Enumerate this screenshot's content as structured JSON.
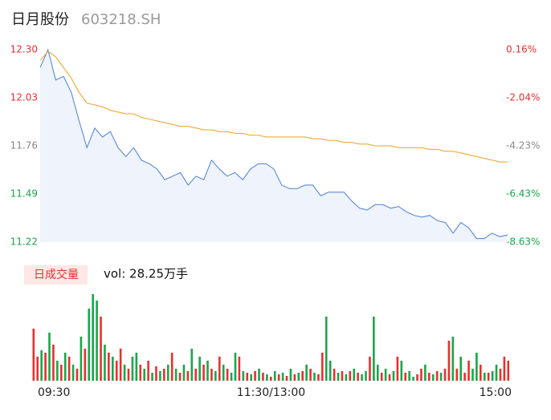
{
  "header": {
    "title": "日月股份",
    "code": "603218.SH"
  },
  "chart_data": [
    {
      "type": "line",
      "x": [
        0,
        4,
        8,
        12,
        16,
        20,
        24,
        28,
        32,
        36,
        40,
        44,
        48,
        52,
        56,
        60,
        64,
        68,
        72,
        76,
        80,
        84,
        88,
        92,
        96,
        100,
        104,
        108,
        112,
        116,
        120,
        124,
        128,
        132,
        136,
        140,
        144,
        148,
        152,
        156,
        160,
        164,
        168,
        172,
        176,
        180,
        184,
        188,
        192,
        196,
        200,
        204,
        208,
        212,
        216,
        220,
        224,
        228,
        232,
        236,
        240
      ],
      "xlim": [
        0,
        240
      ],
      "series": [
        {
          "color": "#4a7fd9",
          "values": [
            12.2,
            12.3,
            12.13,
            12.15,
            12.06,
            11.9,
            11.75,
            11.86,
            11.81,
            11.84,
            11.75,
            11.7,
            11.75,
            11.68,
            11.66,
            11.63,
            11.57,
            11.59,
            11.61,
            11.54,
            11.59,
            11.57,
            11.68,
            11.63,
            11.59,
            11.61,
            11.57,
            11.63,
            11.66,
            11.66,
            11.63,
            11.54,
            11.52,
            11.52,
            11.54,
            11.54,
            11.48,
            11.5,
            11.5,
            11.5,
            11.45,
            11.41,
            11.4,
            11.43,
            11.43,
            11.41,
            11.42,
            11.39,
            11.37,
            11.36,
            11.37,
            11.34,
            11.33,
            11.27,
            11.33,
            11.3,
            11.24,
            11.24,
            11.27,
            11.25,
            11.26
          ]
        },
        {
          "color": "#f0a020",
          "values": [
            12.24,
            12.29,
            12.26,
            12.2,
            12.14,
            12.06,
            12.0,
            11.99,
            11.98,
            11.96,
            11.95,
            11.94,
            11.94,
            11.92,
            11.91,
            11.9,
            11.89,
            11.88,
            11.87,
            11.87,
            11.86,
            11.85,
            11.85,
            11.84,
            11.84,
            11.83,
            11.83,
            11.82,
            11.82,
            11.81,
            11.81,
            11.81,
            11.81,
            11.81,
            11.81,
            11.8,
            11.8,
            11.79,
            11.79,
            11.78,
            11.78,
            11.77,
            11.77,
            11.76,
            11.76,
            11.76,
            11.75,
            11.75,
            11.75,
            11.75,
            11.74,
            11.74,
            11.73,
            11.73,
            11.72,
            11.71,
            11.7,
            11.69,
            11.68,
            11.67,
            11.67
          ]
        }
      ],
      "ylim": [
        11.22,
        12.3
      ],
      "yticks": [
        {
          "value": 12.3,
          "label": "12.30"
        },
        12.03,
        11.76,
        11.49,
        11.22
      ],
      "y2lim": [
        -8.63,
        0.16
      ],
      "y2ticks": [
        {
          "value": 0.16,
          "label": "0.16%"
        },
        {
          "value": -2.04,
          "label": "-2.04%"
        },
        {
          "value": -4.23,
          "label": "-4.23%"
        },
        {
          "value": -6.43,
          "label": "-6.43%"
        },
        {
          "value": -8.63,
          "label": "-8.63%"
        }
      ],
      "ytick_colors": [
        "#e8302f",
        "#e8302f",
        "#888888",
        "#1aa64a",
        "#1aa64a"
      ],
      "area_color": "#eef3fc"
    },
    {
      "type": "bar",
      "title": "日成交量",
      "subtitle": "vol: 28.25万手",
      "xlim": [
        0,
        240
      ],
      "xticks": [
        {
          "value": 0,
          "label": "09:30"
        },
        {
          "value": 120,
          "label": "11:30/13:00"
        },
        {
          "value": 240,
          "label": "15:00"
        }
      ],
      "ylim": [
        0,
        110
      ],
      "values": [
        65,
        30,
        38,
        35,
        60,
        45,
        25,
        20,
        35,
        30,
        20,
        15,
        55,
        40,
        90,
        108,
        100,
        80,
        45,
        35,
        30,
        25,
        40,
        20,
        15,
        30,
        35,
        20,
        15,
        25,
        10,
        18,
        12,
        15,
        20,
        35,
        15,
        10,
        20,
        12,
        40,
        15,
        30,
        20,
        25,
        15,
        12,
        30,
        20,
        15,
        10,
        35,
        30,
        12,
        10,
        8,
        12,
        15,
        10,
        8,
        5,
        12,
        8,
        10,
        6,
        15,
        8,
        10,
        12,
        20,
        15,
        10,
        8,
        35,
        80,
        25,
        15,
        10,
        12,
        8,
        12,
        15,
        10,
        8,
        12,
        30,
        80,
        20,
        10,
        15,
        8,
        12,
        30,
        25,
        10,
        12,
        5,
        8,
        15,
        20,
        10,
        8,
        12,
        10,
        15,
        50,
        55,
        15,
        30,
        10,
        25,
        15,
        35,
        20,
        10,
        10,
        12,
        20,
        15,
        30,
        25
      ],
      "colors": [
        "#e8302f",
        "#e8302f",
        "#1aa64a",
        "#e8302f",
        "#1aa64a",
        "#e8302f",
        "#1aa64a",
        "#e8302f",
        "#1aa64a",
        "#e8302f",
        "#1aa64a",
        "#e8302f",
        "#1aa64a",
        "#e8302f",
        "#1aa64a",
        "#1aa64a",
        "#1aa64a",
        "#e8302f",
        "#1aa64a",
        "#e8302f",
        "#1aa64a",
        "#e8302f",
        "#e8302f",
        "#1aa64a",
        "#e8302f",
        "#1aa64a",
        "#1aa64a",
        "#e8302f",
        "#1aa64a",
        "#e8302f",
        "#1aa64a",
        "#e8302f",
        "#1aa64a",
        "#e8302f",
        "#1aa64a",
        "#e8302f",
        "#1aa64a",
        "#e8302f",
        "#1aa64a",
        "#e8302f",
        "#1aa64a",
        "#e8302f",
        "#1aa64a",
        "#e8302f",
        "#1aa64a",
        "#e8302f",
        "#1aa64a",
        "#e8302f",
        "#1aa64a",
        "#e8302f",
        "#1aa64a",
        "#1aa64a",
        "#e8302f",
        "#1aa64a",
        "#e8302f",
        "#1aa64a",
        "#e8302f",
        "#1aa64a",
        "#e8302f",
        "#1aa64a",
        "#e8302f",
        "#1aa64a",
        "#e8302f",
        "#1aa64a",
        "#e8302f",
        "#1aa64a",
        "#e8302f",
        "#1aa64a",
        "#e8302f",
        "#1aa64a",
        "#e8302f",
        "#1aa64a",
        "#e8302f",
        "#e8302f",
        "#1aa64a",
        "#1aa64a",
        "#e8302f",
        "#1aa64a",
        "#e8302f",
        "#1aa64a",
        "#e8302f",
        "#1aa64a",
        "#e8302f",
        "#1aa64a",
        "#1aa64a",
        "#e8302f",
        "#1aa64a",
        "#1aa64a",
        "#e8302f",
        "#1aa64a",
        "#e8302f",
        "#1aa64a",
        "#e8302f",
        "#1aa64a",
        "#e8302f",
        "#1aa64a",
        "#1aa64a",
        "#e8302f",
        "#e8302f",
        "#1aa64a",
        "#e8302f",
        "#1aa64a",
        "#e8302f",
        "#1aa64a",
        "#e8302f",
        "#e8302f",
        "#1aa64a",
        "#e8302f",
        "#1aa64a",
        "#e8302f",
        "#e8302f",
        "#1aa64a",
        "#1aa64a",
        "#e8302f",
        "#1aa64a",
        "#e8302f",
        "#1aa64a",
        "#1aa64a",
        "#e8302f",
        "#e8302f",
        "#e8302f"
      ]
    }
  ]
}
